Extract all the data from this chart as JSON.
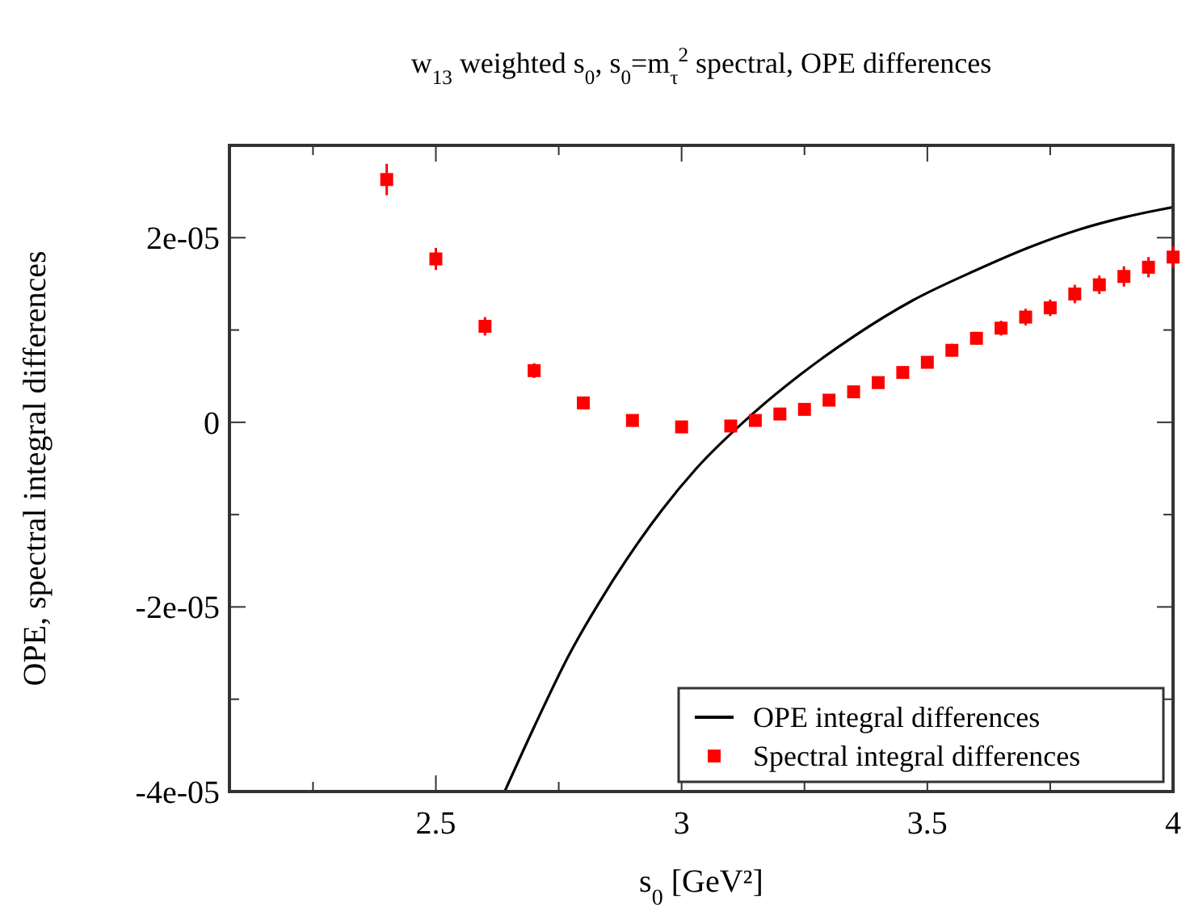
{
  "chart_data": {
    "type": "scatter",
    "title": "w$_{13}$ weighted s$_{0}$, s$_{0}$=m$_{τ}$$^{2}$ spectral, OPE differences",
    "xlabel": "s$_{0}$ [GeV²]",
    "ylabel": "OPE, spectral integral differences",
    "xlim": [
      2.08,
      4
    ],
    "xticks": [
      {
        "value": 2.25,
        "label": null
      },
      2.5,
      {
        "value": 2.75,
        "label": null
      },
      3,
      {
        "value": 3.25,
        "label": null
      },
      3.5,
      {
        "value": 3.75,
        "label": null
      },
      4
    ],
    "ylim": [
      -4e-05,
      3e-05
    ],
    "yticks": [
      {
        "value": -4e-05,
        "label": "-4e-05"
      },
      {
        "value": -3e-05,
        "label": null
      },
      {
        "value": -2e-05,
        "label": "-2e-05"
      },
      {
        "value": -1e-05,
        "label": null
      },
      0,
      {
        "value": 1e-05,
        "label": null
      },
      {
        "value": 2e-05,
        "label": "2e-05"
      }
    ],
    "grid": false,
    "legend": "bottom right",
    "series": [
      {
        "name": "OPE integral differences",
        "type": "line",
        "color": "#000000",
        "marker": "none",
        "line_style": "solid",
        "x": [
          2.64,
          2.7,
          2.77,
          2.85,
          2.96,
          3.03,
          3.14,
          3.24,
          3.35,
          3.47,
          3.6,
          3.7,
          3.81,
          3.9,
          3.97,
          4.0
        ],
        "values": [
          -4e-05,
          -3.3e-05,
          -2.53e-05,
          -1.8e-05,
          -9.5e-06,
          -5e-06,
          7e-07,
          5.1e-06,
          9.3e-06,
          1.32e-05,
          1.65e-05,
          1.88e-05,
          2.09e-05,
          2.22e-05,
          2.3e-05,
          2.33e-05
        ]
      },
      {
        "name": "Spectral integral differences",
        "color": "#ff0000",
        "marker": "square",
        "x": [
          2.4,
          2.5,
          2.6,
          2.7,
          2.8,
          2.9,
          3.0,
          3.1,
          3.15,
          3.2,
          3.25,
          3.3,
          3.35,
          3.4,
          3.45,
          3.5,
          3.55,
          3.6,
          3.65,
          3.7,
          3.75,
          3.8,
          3.85,
          3.9,
          3.95,
          4.0
        ],
        "values": [
          2.63e-05,
          1.77e-05,
          1.04e-05,
          5.6e-06,
          2.1e-06,
          2e-07,
          -5e-07,
          -4e-07,
          2e-07,
          9e-07,
          1.4e-06,
          2.4e-06,
          3.3e-06,
          4.3e-06,
          5.4e-06,
          6.5e-06,
          7.8e-06,
          9.1e-06,
          1.02e-05,
          1.14e-05,
          1.24e-05,
          1.39e-05,
          1.49e-05,
          1.58e-05,
          1.68e-05,
          1.79e-05
        ],
        "errors": [
          1.7e-06,
          1.2e-06,
          1e-06,
          8e-07,
          6e-07,
          4e-07,
          4e-07,
          4e-07,
          4e-07,
          4e-07,
          4e-07,
          5e-07,
          5e-07,
          5e-07,
          6e-07,
          6e-07,
          7e-07,
          7e-07,
          8e-07,
          9e-07,
          9e-07,
          1e-06,
          1e-06,
          1.1e-06,
          1.1e-06,
          1.2e-06
        ]
      }
    ]
  }
}
